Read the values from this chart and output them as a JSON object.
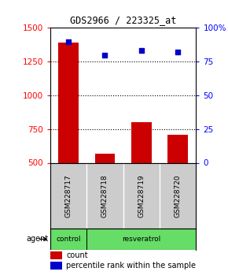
{
  "title": "GDS2966 / 223325_at",
  "samples": [
    "GSM228717",
    "GSM228718",
    "GSM228719",
    "GSM228720"
  ],
  "counts": [
    1390,
    570,
    800,
    710
  ],
  "percentiles": [
    90,
    80,
    83,
    82
  ],
  "ylim_left": [
    500,
    1500
  ],
  "ylim_right": [
    0,
    100
  ],
  "yticks_left": [
    500,
    750,
    1000,
    1250,
    1500
  ],
  "yticks_right": [
    0,
    25,
    50,
    75,
    100
  ],
  "bar_color": "#cc0000",
  "dot_color": "#0000cc",
  "agent_color": "#66dd66",
  "background_color": "#ffffff",
  "sample_bg_color": "#cccccc"
}
